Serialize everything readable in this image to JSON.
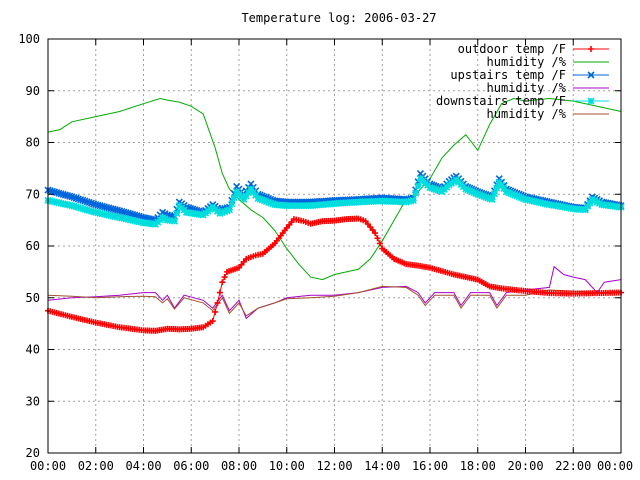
{
  "chart_data": {
    "type": "line",
    "title": "Temperature log: 2006-03-27",
    "xlabel": "",
    "ylabel": "",
    "xlim": [
      0,
      24
    ],
    "ylim": [
      20,
      100
    ],
    "grid": true,
    "legend_position": "top-right",
    "x_tick_labels": [
      "00:00",
      "02:00",
      "04:00",
      "06:00",
      "08:00",
      "10:00",
      "12:00",
      "14:00",
      "16:00",
      "18:00",
      "20:00",
      "22:00",
      "00:00"
    ],
    "x_tick_values": [
      0,
      2,
      4,
      6,
      8,
      10,
      12,
      14,
      16,
      18,
      20,
      22,
      24
    ],
    "y_ticks": [
      20,
      30,
      40,
      50,
      60,
      70,
      80,
      90,
      100
    ],
    "series": [
      {
        "name": "outdoor temp /F",
        "color": "#ff0000",
        "marker": "plus",
        "points": [
          [
            0,
            47.5
          ],
          [
            1,
            46.3
          ],
          [
            2,
            45.2
          ],
          [
            3,
            44.3
          ],
          [
            4,
            43.7
          ],
          [
            4.5,
            43.6
          ],
          [
            5,
            44.0
          ],
          [
            5.5,
            43.9
          ],
          [
            6,
            44.0
          ],
          [
            6.5,
            44.3
          ],
          [
            6.9,
            45.5
          ],
          [
            7.1,
            49.0
          ],
          [
            7.3,
            53.0
          ],
          [
            7.5,
            55.0
          ],
          [
            8,
            55.8
          ],
          [
            8.3,
            57.5
          ],
          [
            8.7,
            58.2
          ],
          [
            9,
            58.5
          ],
          [
            9.5,
            60.5
          ],
          [
            10,
            63.5
          ],
          [
            10.3,
            65.2
          ],
          [
            10.7,
            64.8
          ],
          [
            11,
            64.3
          ],
          [
            11.5,
            64.8
          ],
          [
            12,
            64.9
          ],
          [
            12.5,
            65.2
          ],
          [
            13,
            65.3
          ],
          [
            13.3,
            64.8
          ],
          [
            13.7,
            62.5
          ],
          [
            14,
            59.5
          ],
          [
            14.5,
            57.5
          ],
          [
            15,
            56.5
          ],
          [
            15.5,
            56.2
          ],
          [
            16,
            55.8
          ],
          [
            17,
            54.5
          ],
          [
            17.5,
            54.0
          ],
          [
            18,
            53.5
          ],
          [
            18.5,
            52.2
          ],
          [
            19,
            51.8
          ],
          [
            20,
            51.3
          ],
          [
            21,
            50.9
          ],
          [
            22,
            50.8
          ],
          [
            23,
            50.9
          ],
          [
            24,
            51.0
          ]
        ]
      },
      {
        "name": "humidity /%",
        "color": "#00aa00",
        "marker": "none",
        "points": [
          [
            0,
            82.0
          ],
          [
            0.5,
            82.5
          ],
          [
            1,
            84.0
          ],
          [
            2,
            85.0
          ],
          [
            3,
            86.0
          ],
          [
            4,
            87.5
          ],
          [
            4.7,
            88.5
          ],
          [
            5,
            88.2
          ],
          [
            5.5,
            87.8
          ],
          [
            6,
            87.0
          ],
          [
            6.5,
            85.5
          ],
          [
            7,
            79.0
          ],
          [
            7.3,
            74.0
          ],
          [
            7.6,
            71.0
          ],
          [
            8,
            69.0
          ],
          [
            8.5,
            67.0
          ],
          [
            9,
            65.5
          ],
          [
            9.5,
            63.0
          ],
          [
            10,
            59.5
          ],
          [
            10.5,
            56.5
          ],
          [
            11,
            54.0
          ],
          [
            11.5,
            53.5
          ],
          [
            12,
            54.5
          ],
          [
            12.5,
            55.0
          ],
          [
            13,
            55.5
          ],
          [
            13.5,
            57.5
          ],
          [
            14,
            61.0
          ],
          [
            14.5,
            65.0
          ],
          [
            15,
            69.0
          ],
          [
            15.5,
            70.5
          ],
          [
            16,
            73.0
          ],
          [
            16.5,
            77.0
          ],
          [
            17,
            79.5
          ],
          [
            17.5,
            81.5
          ],
          [
            18,
            78.5
          ],
          [
            18.5,
            83.5
          ],
          [
            19,
            87.5
          ],
          [
            19.5,
            88.5
          ],
          [
            20,
            88.0
          ],
          [
            21,
            88.5
          ],
          [
            22,
            88.0
          ],
          [
            23,
            87.0
          ],
          [
            24,
            86.0
          ]
        ]
      },
      {
        "name": "upstairs temp /F",
        "color": "#0066dd",
        "marker": "x",
        "points": [
          [
            0,
            70.8
          ],
          [
            1,
            69.5
          ],
          [
            2,
            68.0
          ],
          [
            3,
            66.8
          ],
          [
            4,
            65.5
          ],
          [
            4.5,
            65.0
          ],
          [
            4.8,
            66.5
          ],
          [
            5,
            66.0
          ],
          [
            5.3,
            65.7
          ],
          [
            5.5,
            68.5
          ],
          [
            5.8,
            67.5
          ],
          [
            6.5,
            66.5
          ],
          [
            6.9,
            68.0
          ],
          [
            7.2,
            67.0
          ],
          [
            7.6,
            67.5
          ],
          [
            7.9,
            71.5
          ],
          [
            8.2,
            70.0
          ],
          [
            8.5,
            72.0
          ],
          [
            8.8,
            70.0
          ],
          [
            9.5,
            68.7
          ],
          [
            10,
            68.5
          ],
          [
            11,
            68.5
          ],
          [
            12,
            68.8
          ],
          [
            13,
            69.0
          ],
          [
            14,
            69.3
          ],
          [
            15,
            69.0
          ],
          [
            15.3,
            69.3
          ],
          [
            15.6,
            74.0
          ],
          [
            16,
            72.0
          ],
          [
            16.5,
            71.0
          ],
          [
            16.8,
            72.5
          ],
          [
            17.1,
            73.5
          ],
          [
            17.5,
            71.5
          ],
          [
            18,
            70.5
          ],
          [
            18.6,
            69.5
          ],
          [
            18.9,
            73.0
          ],
          [
            19.2,
            71.0
          ],
          [
            20,
            69.5
          ],
          [
            21,
            68.5
          ],
          [
            22,
            67.5
          ],
          [
            22.5,
            67.3
          ],
          [
            22.8,
            69.5
          ],
          [
            23.2,
            68.5
          ],
          [
            24,
            67.8
          ]
        ]
      },
      {
        "name": "humidity /%",
        "color": "#aa00cc",
        "marker": "none",
        "points": [
          [
            0,
            49.5
          ],
          [
            1,
            50.0
          ],
          [
            2,
            50.2
          ],
          [
            3,
            50.5
          ],
          [
            4,
            51.0
          ],
          [
            4.5,
            51.0
          ],
          [
            4.8,
            49.5
          ],
          [
            5,
            50.5
          ],
          [
            5.3,
            48.0
          ],
          [
            5.7,
            50.5
          ],
          [
            6.5,
            49.5
          ],
          [
            6.9,
            48.0
          ],
          [
            7.3,
            50.5
          ],
          [
            7.6,
            47.5
          ],
          [
            8,
            49.5
          ],
          [
            8.3,
            46.0
          ],
          [
            8.8,
            48.0
          ],
          [
            9.5,
            49.0
          ],
          [
            10,
            50.0
          ],
          [
            11,
            50.5
          ],
          [
            12,
            50.5
          ],
          [
            13,
            51.0
          ],
          [
            14,
            52.0
          ],
          [
            15,
            52.2
          ],
          [
            15.5,
            51.0
          ],
          [
            15.8,
            49.0
          ],
          [
            16.2,
            51.0
          ],
          [
            17,
            51.0
          ],
          [
            17.3,
            48.5
          ],
          [
            17.7,
            51.0
          ],
          [
            18.5,
            51.0
          ],
          [
            18.8,
            48.5
          ],
          [
            19.2,
            51.0
          ],
          [
            20,
            51.5
          ],
          [
            21,
            52.0
          ],
          [
            21.2,
            56.0
          ],
          [
            21.6,
            54.5
          ],
          [
            22,
            54.0
          ],
          [
            22.5,
            53.5
          ],
          [
            23,
            51.0
          ],
          [
            23.3,
            53.0
          ],
          [
            24,
            53.5
          ]
        ]
      },
      {
        "name": "downstairs temp /F",
        "color": "#00dddd",
        "marker": "star",
        "points": [
          [
            0,
            68.8
          ],
          [
            1,
            67.8
          ],
          [
            2,
            66.5
          ],
          [
            3,
            65.5
          ],
          [
            4,
            64.5
          ],
          [
            4.5,
            64.2
          ],
          [
            4.8,
            65.5
          ],
          [
            5,
            65.0
          ],
          [
            5.3,
            64.8
          ],
          [
            5.5,
            67.8
          ],
          [
            5.8,
            66.5
          ],
          [
            6.5,
            66.0
          ],
          [
            6.9,
            67.5
          ],
          [
            7.2,
            66.3
          ],
          [
            7.6,
            67.0
          ],
          [
            7.9,
            70.5
          ],
          [
            8.2,
            69.0
          ],
          [
            8.5,
            71.0
          ],
          [
            8.8,
            69.2
          ],
          [
            9.5,
            68.0
          ],
          [
            10,
            67.8
          ],
          [
            11,
            67.8
          ],
          [
            12,
            68.2
          ],
          [
            13,
            68.5
          ],
          [
            14,
            68.7
          ],
          [
            15,
            68.5
          ],
          [
            15.3,
            68.8
          ],
          [
            15.6,
            73.0
          ],
          [
            16,
            71.3
          ],
          [
            16.5,
            70.5
          ],
          [
            16.8,
            71.8
          ],
          [
            17.1,
            72.8
          ],
          [
            17.5,
            71.0
          ],
          [
            18,
            70.0
          ],
          [
            18.6,
            69.0
          ],
          [
            18.9,
            72.3
          ],
          [
            19.2,
            70.5
          ],
          [
            20,
            69.0
          ],
          [
            21,
            68.0
          ],
          [
            22,
            67.2
          ],
          [
            22.5,
            67.0
          ],
          [
            22.8,
            69.0
          ],
          [
            23.2,
            68.0
          ],
          [
            24,
            67.5
          ]
        ]
      },
      {
        "name": "humidity /%",
        "color": "#a0522d",
        "marker": "none",
        "points": [
          [
            0,
            50.5
          ],
          [
            1,
            50.3
          ],
          [
            2,
            50.0
          ],
          [
            3,
            50.2
          ],
          [
            4,
            50.3
          ],
          [
            4.5,
            50.2
          ],
          [
            4.8,
            49.0
          ],
          [
            5,
            49.8
          ],
          [
            5.3,
            47.8
          ],
          [
            5.7,
            50.0
          ],
          [
            6.5,
            49.0
          ],
          [
            6.9,
            47.5
          ],
          [
            7.3,
            50.0
          ],
          [
            7.6,
            47.0
          ],
          [
            8,
            49.0
          ],
          [
            8.3,
            46.5
          ],
          [
            8.8,
            48.0
          ],
          [
            9.5,
            49.0
          ],
          [
            10,
            49.8
          ],
          [
            11,
            50.0
          ],
          [
            12,
            50.3
          ],
          [
            13,
            51.0
          ],
          [
            14,
            52.2
          ],
          [
            15,
            52.0
          ],
          [
            15.5,
            50.5
          ],
          [
            15.8,
            48.5
          ],
          [
            16.2,
            50.5
          ],
          [
            17,
            50.5
          ],
          [
            17.3,
            48.0
          ],
          [
            17.7,
            50.5
          ],
          [
            18.5,
            50.5
          ],
          [
            18.8,
            48.0
          ],
          [
            19.2,
            50.5
          ],
          [
            20,
            50.5
          ],
          [
            21,
            51.5
          ],
          [
            22,
            51.3
          ],
          [
            23,
            51.0
          ],
          [
            24,
            51.2
          ]
        ]
      }
    ]
  }
}
